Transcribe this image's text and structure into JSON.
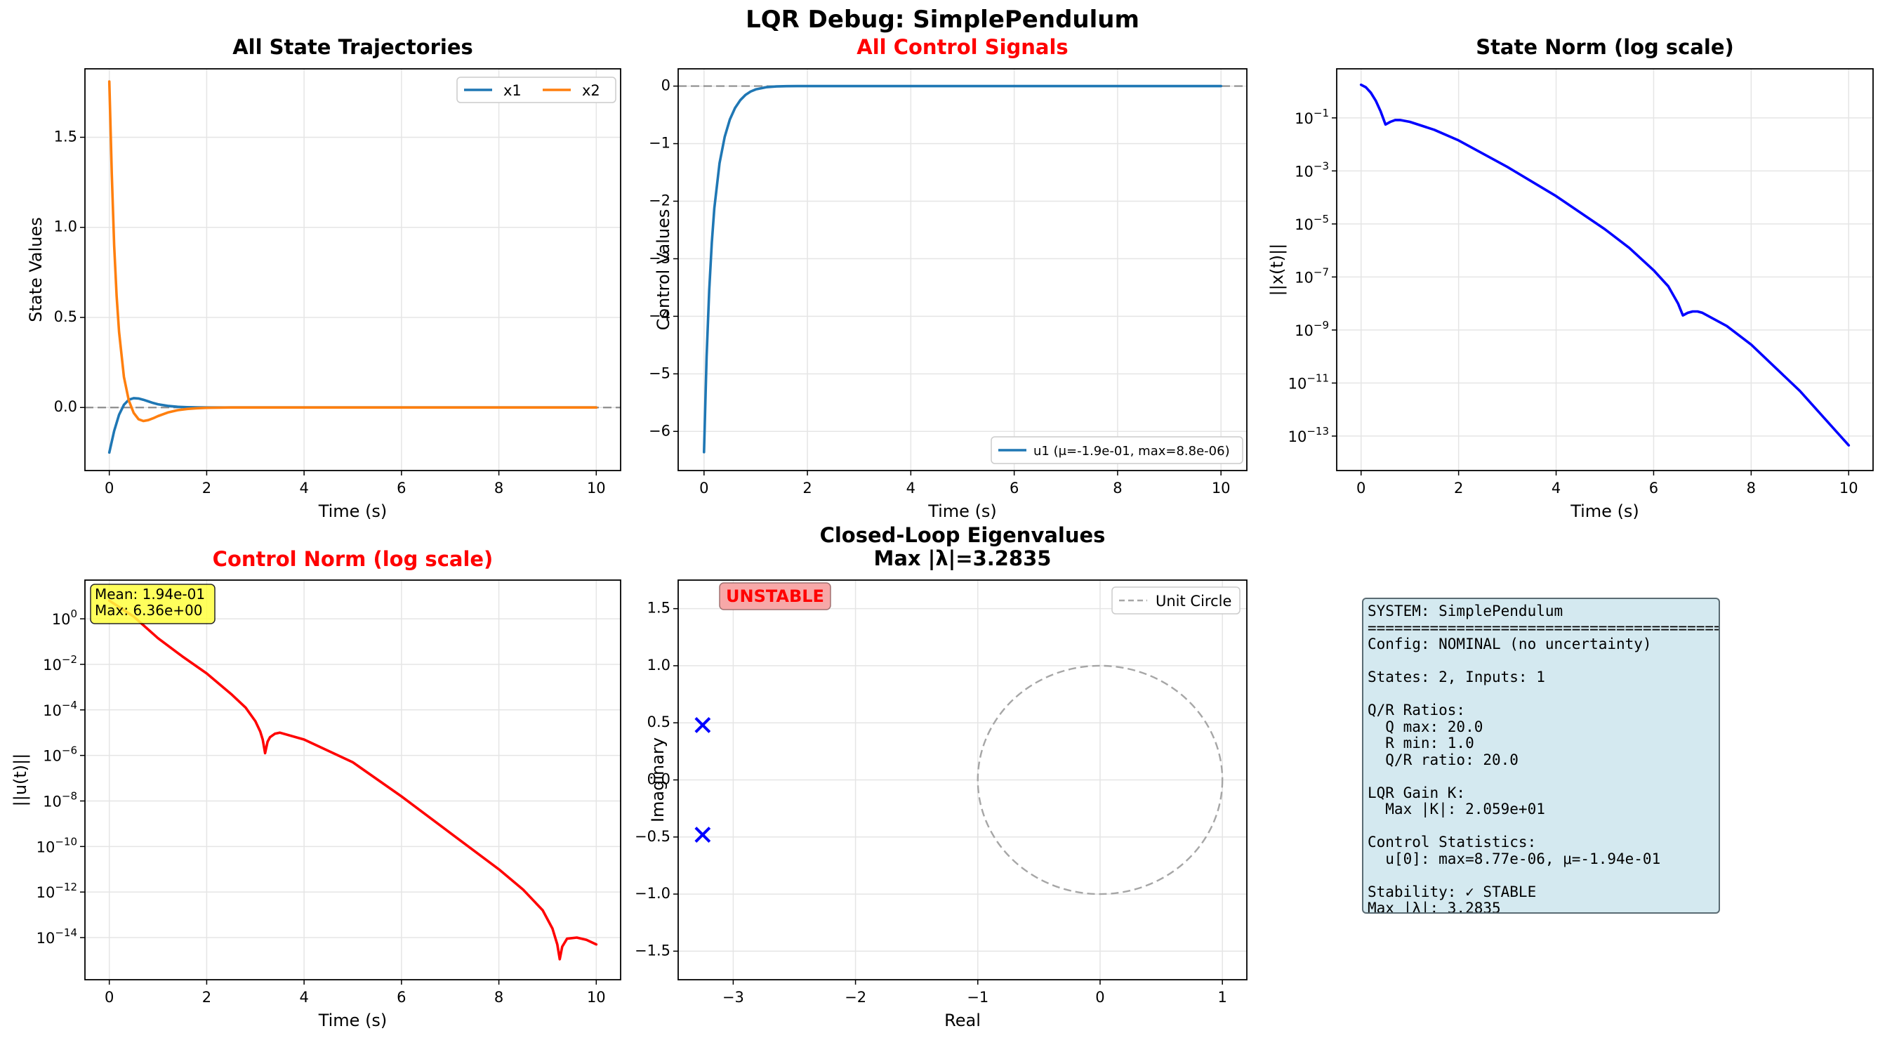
{
  "figure": {
    "title": "LQR Debug: SimplePendulum"
  },
  "colors": {
    "blue": "#1f77b4",
    "orange": "#ff7f0e",
    "red": "#ff0000",
    "pureblue": "#0000ff",
    "grid": "#e5e5e5",
    "ref": "#8c8c8c"
  },
  "chart_data": [
    {
      "id": "states",
      "type": "line",
      "title": "All State Trajectories",
      "title_color": "#000000",
      "xlabel": "Time (s)",
      "ylabel": "State Values",
      "xlim": [
        -0.5,
        10.5
      ],
      "ylim": [
        -0.35,
        1.88
      ],
      "xticks": [
        "0",
        "2",
        "4",
        "6",
        "8",
        "10"
      ],
      "yticks": [
        "0.0",
        "0.5",
        "1.0",
        "1.5"
      ],
      "reference_line": 0,
      "legend": {
        "location": "upper right",
        "columns": 2,
        "entries": [
          "x1",
          "x2"
        ]
      },
      "series": [
        {
          "name": "x1",
          "color": "#1f77b4",
          "x": [
            0,
            0.1,
            0.2,
            0.3,
            0.4,
            0.5,
            0.6,
            0.7,
            0.8,
            0.9,
            1.0,
            1.2,
            1.4,
            1.6,
            1.8,
            2.0,
            2.5,
            3,
            4,
            6,
            8,
            10
          ],
          "y": [
            -0.25,
            -0.13,
            -0.04,
            0.015,
            0.043,
            0.052,
            0.05,
            0.043,
            0.034,
            0.025,
            0.018,
            0.009,
            0.004,
            0.0015,
            0.0005,
            0,
            0,
            0,
            0,
            0,
            0,
            0
          ]
        },
        {
          "name": "x2",
          "color": "#ff7f0e",
          "x": [
            0,
            0.05,
            0.1,
            0.15,
            0.2,
            0.3,
            0.4,
            0.5,
            0.6,
            0.7,
            0.8,
            0.9,
            1.0,
            1.2,
            1.4,
            1.6,
            1.8,
            2.0,
            2.5,
            3,
            4,
            6,
            8,
            10
          ],
          "y": [
            1.81,
            1.3,
            0.9,
            0.62,
            0.42,
            0.17,
            0.04,
            -0.03,
            -0.065,
            -0.075,
            -0.07,
            -0.06,
            -0.048,
            -0.028,
            -0.015,
            -0.008,
            -0.004,
            -0.002,
            0,
            0,
            0,
            0,
            0,
            0
          ]
        }
      ]
    },
    {
      "id": "controls",
      "type": "line",
      "title": "All Control Signals",
      "title_color": "#ff0000",
      "xlabel": "Time (s)",
      "ylabel": "Control Values",
      "xlim": [
        -0.5,
        10.5
      ],
      "ylim": [
        -6.68,
        0.3
      ],
      "xticks": [
        "0",
        "2",
        "4",
        "6",
        "8",
        "10"
      ],
      "yticks": [
        "0",
        "−1",
        "−2",
        "−3",
        "−4",
        "−5",
        "−6"
      ],
      "reference_line": 0,
      "legend": {
        "location": "lower right",
        "entries": [
          "u1 (μ=-1.9e-01, max=8.8e-06)"
        ]
      },
      "series": [
        {
          "name": "u1 (μ=-1.9e-01, max=8.8e-06)",
          "color": "#1f77b4",
          "x": [
            0,
            0.05,
            0.1,
            0.15,
            0.2,
            0.3,
            0.4,
            0.5,
            0.6,
            0.7,
            0.8,
            0.9,
            1.0,
            1.2,
            1.4,
            1.6,
            1.8,
            2.0,
            2.5,
            3,
            4,
            6,
            8,
            10
          ],
          "y": [
            -6.36,
            -4.7,
            -3.55,
            -2.72,
            -2.12,
            -1.34,
            -0.88,
            -0.58,
            -0.38,
            -0.245,
            -0.155,
            -0.095,
            -0.057,
            -0.02,
            -0.006,
            -0.002,
            0,
            0,
            0,
            0,
            0,
            0,
            0,
            0
          ]
        }
      ]
    },
    {
      "id": "state_norm",
      "type": "line",
      "title": "State Norm (log scale)",
      "title_color": "#000000",
      "xlabel": "Time (s)",
      "ylabel": "||x(t)||",
      "yscale": "log",
      "xlim": [
        -0.5,
        10.5
      ],
      "ylim_log10": [
        -14.3,
        0.85
      ],
      "xticks": [
        "0",
        "2",
        "4",
        "6",
        "8",
        "10"
      ],
      "ytick_exponents": [
        "-1",
        "-3",
        "-5",
        "-7",
        "-9",
        "-11",
        "-13"
      ],
      "series": [
        {
          "name": "||x(t)||",
          "color": "#0000ff",
          "x": [
            0,
            0.1,
            0.2,
            0.3,
            0.4,
            0.5,
            0.6,
            0.7,
            0.8,
            1.0,
            1.5,
            2,
            3,
            4,
            5,
            5.5,
            6,
            6.3,
            6.5,
            6.6,
            6.7,
            6.8,
            6.9,
            7.0,
            7.5,
            8,
            9,
            10
          ],
          "logy": [
            0.25,
            0.15,
            -0.05,
            -0.35,
            -0.75,
            -1.25,
            -1.15,
            -1.08,
            -1.08,
            -1.15,
            -1.45,
            -1.85,
            -2.85,
            -3.95,
            -5.2,
            -5.9,
            -6.75,
            -7.35,
            -8.0,
            -8.45,
            -8.35,
            -8.3,
            -8.3,
            -8.35,
            -8.85,
            -9.55,
            -11.3,
            -13.35
          ]
        }
      ]
    },
    {
      "id": "control_norm",
      "type": "line",
      "title": "Control Norm (log scale)",
      "title_color": "#ff0000",
      "xlabel": "Time (s)",
      "ylabel": "||u(t)||",
      "yscale": "log",
      "xlim": [
        -0.5,
        10.5
      ],
      "ylim_log10": [
        -15.85,
        1.7
      ],
      "xticks": [
        "0",
        "2",
        "4",
        "6",
        "8",
        "10"
      ],
      "ytick_exponents": [
        "0",
        "-2",
        "-4",
        "-6",
        "-8",
        "-10",
        "-12",
        "-14"
      ],
      "annotation": {
        "lines": [
          "Mean: 1.94e-01",
          "Max: 6.36e+00"
        ]
      },
      "series": [
        {
          "name": "||u(t)||",
          "color": "#ff0000",
          "x": [
            0,
            0.5,
            1,
            1.5,
            2,
            2.5,
            2.8,
            3.0,
            3.1,
            3.15,
            3.2,
            3.25,
            3.3,
            3.4,
            3.5,
            4,
            5,
            6,
            7,
            8,
            8.5,
            8.9,
            9.1,
            9.2,
            9.25,
            9.3,
            9.4,
            9.6,
            9.8,
            10
          ],
          "logy": [
            0.8,
            0.1,
            -0.85,
            -1.65,
            -2.4,
            -3.3,
            -3.9,
            -4.5,
            -4.95,
            -5.3,
            -5.9,
            -5.4,
            -5.2,
            -5.05,
            -5.0,
            -5.3,
            -6.3,
            -7.8,
            -9.4,
            -11.0,
            -11.9,
            -12.8,
            -13.6,
            -14.3,
            -14.95,
            -14.4,
            -14.05,
            -14.0,
            -14.1,
            -14.3
          ]
        }
      ]
    },
    {
      "id": "eigenvalues",
      "type": "scatter",
      "title_lines": [
        "Closed-Loop Eigenvalues",
        "Max |λ|=3.2835"
      ],
      "title_color": "#000000",
      "xlabel": "Real",
      "ylabel": "Imaginary",
      "xlim": [
        -3.45,
        1.2
      ],
      "ylim": [
        -1.75,
        1.75
      ],
      "xticks": [
        "−3",
        "−2",
        "−1",
        "0",
        "1"
      ],
      "yticks": [
        "1.5",
        "1.0",
        "0.5",
        "0.0",
        "−0.5",
        "−1.0",
        "−1.5"
      ],
      "badge": "UNSTABLE",
      "legend": {
        "location": "upper right",
        "entries": [
          "Unit Circle"
        ]
      },
      "unit_circle": {
        "center": [
          0,
          0
        ],
        "radius": 1
      },
      "points": [
        {
          "re": -3.25,
          "im": 0.48
        },
        {
          "re": -3.25,
          "im": -0.48
        }
      ]
    }
  ],
  "info_panel": {
    "lines": [
      "SYSTEM: SimplePendulum",
      "========================================",
      "Config: NOMINAL (no uncertainty)",
      "",
      "States: 2, Inputs: 1",
      "",
      "Q/R Ratios:",
      "  Q max: 20.0",
      "  R min: 1.0",
      "  Q/R ratio: 20.0",
      "",
      "LQR Gain K:",
      "  Max |K|: 2.059e+01",
      "",
      "Control Statistics:",
      "  u[0]: max=8.77e-06, μ=-1.94e-01",
      "",
      "Stability: ✓ STABLE",
      "Max |λ|: 3.2835"
    ]
  }
}
